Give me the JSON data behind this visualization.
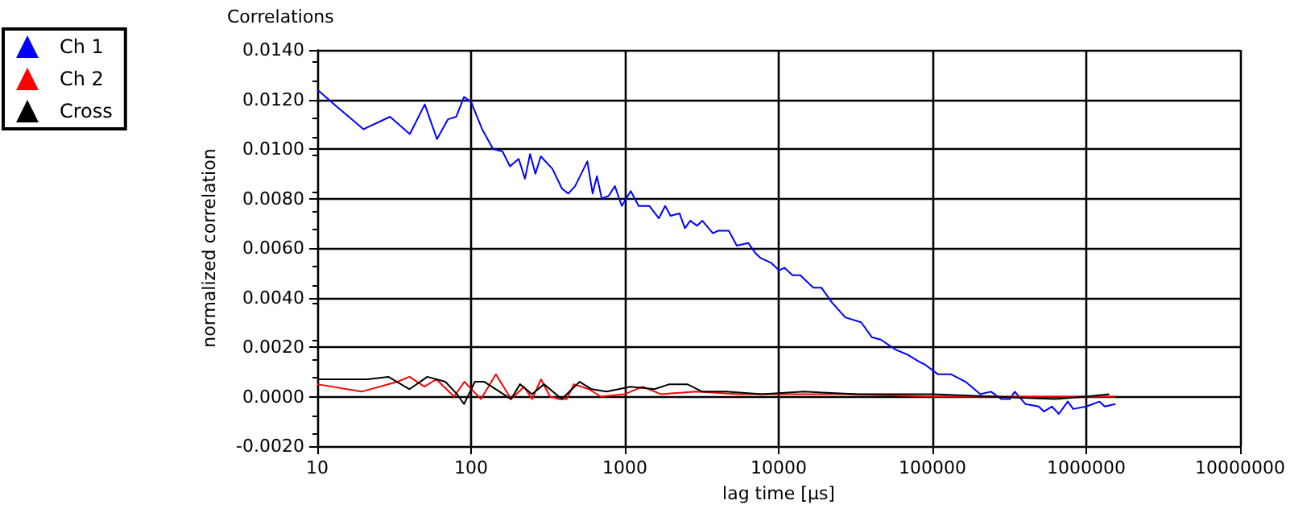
{
  "chart_data": {
    "type": "line",
    "title": "Correlations",
    "xlabel": "lag time [µs]",
    "ylabel": "normalized correlation",
    "log": "x",
    "grid": true,
    "legend": "left",
    "marker": "none",
    "line_style": "solid",
    "xlim": [
      10,
      10000000
    ],
    "xticks": [
      10,
      100,
      1000,
      10000,
      100000,
      1000000,
      10000000
    ],
    "ylim": [
      -0.002,
      0.014
    ],
    "yticks": [
      {
        "value": -0.002,
        "label": "-0.0020"
      },
      {
        "value": 0,
        "label": "0.0000"
      },
      {
        "value": 0.002,
        "label": "0.0020"
      },
      {
        "value": 0.004,
        "label": "0.0040"
      },
      {
        "value": 0.006,
        "label": "0.0060"
      },
      {
        "value": 0.008,
        "label": "0.0080"
      },
      {
        "value": 0.01,
        "label": "0.0100"
      },
      {
        "value": 0.012,
        "label": "0.0120"
      },
      {
        "value": 0.014,
        "label": "0.0140"
      }
    ],
    "series": [
      {
        "name": "Ch 1",
        "color": "#0000ff",
        "x": [
          10,
          12.9,
          20,
          29.7,
          40,
          50,
          60,
          70.8,
          80,
          90,
          100,
          118,
          139,
          160,
          179,
          204,
          224,
          242,
          262,
          284,
          338,
          390,
          429,
          475,
          570,
          617,
          658,
          707,
          783,
          861,
          955,
          1091,
          1230,
          1442,
          1663,
          1828,
          1981,
          2266,
          2455,
          2661,
          2946,
          3187,
          3735,
          4043,
          4740,
          5338,
          6350,
          7047,
          7620,
          8935,
          10070,
          10900,
          12300,
          13800,
          16800,
          18950,
          22200,
          27100,
          34400,
          40300,
          46100,
          57500,
          68500,
          82300,
          89000,
          108700,
          132400,
          164000,
          204700,
          240000,
          281000,
          318000,
          343000,
          402000,
          490000,
          531000,
          598000,
          663000,
          758000,
          822000,
          1000000,
          1219000,
          1320000,
          1549000
        ],
        "values": [
          0.0124,
          0.0118,
          0.0108,
          0.0113,
          0.0106,
          0.0118,
          0.0104,
          0.0112,
          0.0113,
          0.0121,
          0.0119,
          0.0108,
          0.01,
          0.0099,
          0.0093,
          0.0096,
          0.0088,
          0.0098,
          0.009,
          0.0097,
          0.0092,
          0.0084,
          0.0082,
          0.0085,
          0.0095,
          0.0082,
          0.0089,
          0.008,
          0.0081,
          0.0085,
          0.0077,
          0.0083,
          0.0077,
          0.0077,
          0.0072,
          0.0077,
          0.0073,
          0.0074,
          0.0068,
          0.0071,
          0.0069,
          0.0071,
          0.0066,
          0.0067,
          0.0067,
          0.0061,
          0.0062,
          0.0058,
          0.0056,
          0.0054,
          0.0051,
          0.0052,
          0.0049,
          0.0049,
          0.0044,
          0.0044,
          0.0038,
          0.0032,
          0.003,
          0.0024,
          0.0023,
          0.0019,
          0.0017,
          0.0014,
          0.0013,
          0.0009,
          0.0009,
          0.0006,
          0.0001,
          0.0002,
          -0.0001,
          -0.0001,
          0.0002,
          -0.0003,
          -0.0004,
          -0.0006,
          -0.0004,
          -0.0007,
          -0.0002,
          -0.0005,
          -0.0004,
          -0.0002,
          -0.0004,
          -0.0003
        ]
      },
      {
        "name": "Ch 2",
        "color": "#ff0000",
        "x": [
          10,
          19.4,
          33.2,
          39.8,
          49.7,
          59.4,
          77.6,
          90.4,
          116,
          145,
          182,
          221,
          249,
          285,
          326,
          373,
          419,
          466,
          583,
          697,
          1000,
          1306,
          1706,
          2917,
          5470,
          10200,
          27300,
          105000,
          1550000
        ],
        "values": [
          0.0005,
          0.0002,
          0.0006,
          0.0008,
          0.0004,
          0.0007,
          0.0,
          0.0006,
          -0.0001,
          0.0009,
          -0.0001,
          0.0004,
          -0.0001,
          0.0007,
          0.0,
          -0.0001,
          -0.0001,
          0.0005,
          0.0003,
          0.0,
          0.0001,
          0.0004,
          0.0001,
          0.0002,
          0.0001,
          0.0001,
          0.0001,
          0.0,
          0.0
        ]
      },
      {
        "name": "Cross",
        "color": "#000000",
        "x": [
          10,
          21.2,
          29,
          39.8,
          52,
          68,
          81,
          90,
          106,
          122,
          182,
          208,
          249,
          298,
          389,
          508,
          608,
          760,
          1090,
          1556,
          1946,
          2547,
          3184,
          4550,
          7800,
          14600,
          32700,
          100000,
          630000,
          1000000,
          1410000
        ],
        "values": [
          0.0007,
          0.0007,
          0.0008,
          0.0003,
          0.0008,
          0.0006,
          0.0001,
          -0.0003,
          0.0006,
          0.0006,
          -0.0001,
          0.0005,
          0.0001,
          0.0005,
          -0.0001,
          0.0006,
          0.0003,
          0.0002,
          0.0004,
          0.0003,
          0.0005,
          0.0005,
          0.0002,
          0.0002,
          0.0001,
          0.0002,
          0.0001,
          0.0001,
          -0.0001,
          0.0,
          0.0001
        ]
      }
    ]
  }
}
